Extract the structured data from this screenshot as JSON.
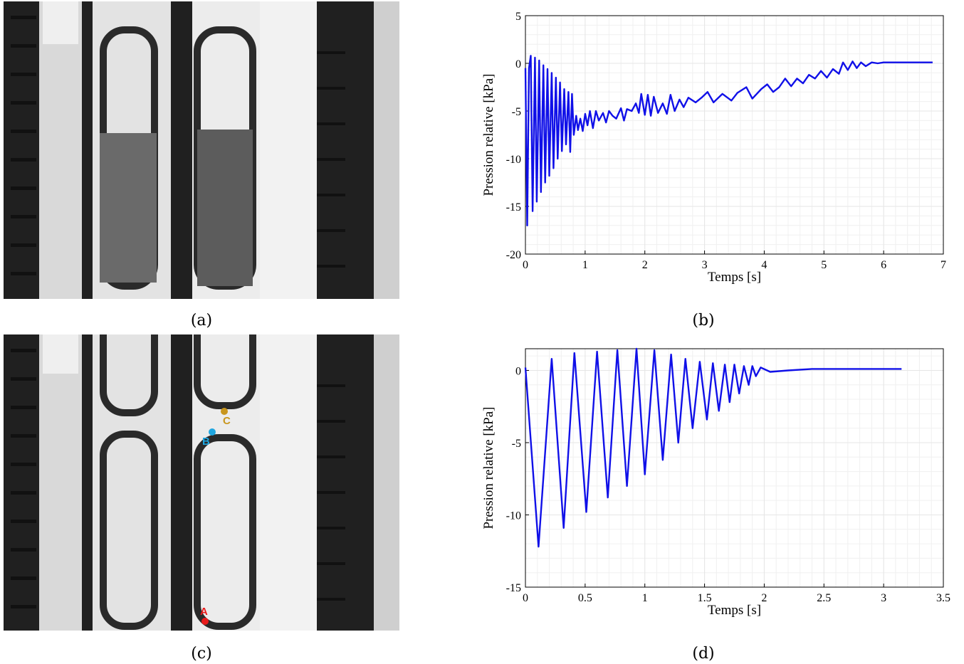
{
  "panels": [
    {
      "id": "a",
      "caption": "(a)"
    },
    {
      "id": "b",
      "caption": "(b)"
    },
    {
      "id": "c",
      "caption": "(c)"
    },
    {
      "id": "d",
      "caption": "(d)"
    }
  ],
  "photo_c_points": [
    {
      "label": "A",
      "color": "#e81b1b"
    },
    {
      "label": "B",
      "color": "#1fa6e0"
    },
    {
      "label": "C",
      "color": "#c8961e"
    }
  ],
  "colors": {
    "series": "#1010e8",
    "grid": "#e6e6e6"
  },
  "chart_data": [
    {
      "type": "line",
      "panel": "b",
      "xlabel": "Temps [s]",
      "ylabel": "Pression relative [kPa]",
      "xlim": [
        0,
        7
      ],
      "ylim": [
        -20,
        5
      ],
      "xticks": [
        0,
        1,
        2,
        3,
        4,
        5,
        6,
        7
      ],
      "yticks": [
        5,
        0,
        -5,
        -10,
        -15,
        -20
      ],
      "grid": true,
      "series": [
        {
          "values": [
            [
              0.0,
              -0.5
            ],
            [
              0.03,
              -17.0
            ],
            [
              0.06,
              -0.5
            ],
            [
              0.09,
              0.8
            ],
            [
              0.12,
              -15.5
            ],
            [
              0.16,
              0.6
            ],
            [
              0.19,
              -14.5
            ],
            [
              0.23,
              0.3
            ],
            [
              0.26,
              -13.5
            ],
            [
              0.3,
              -0.2
            ],
            [
              0.33,
              -12.5
            ],
            [
              0.37,
              -0.6
            ],
            [
              0.4,
              -11.8
            ],
            [
              0.44,
              -1.0
            ],
            [
              0.47,
              -11.0
            ],
            [
              0.51,
              -1.5
            ],
            [
              0.54,
              -10.0
            ],
            [
              0.58,
              -2.0
            ],
            [
              0.61,
              -9.2
            ],
            [
              0.65,
              -2.7
            ],
            [
              0.68,
              -8.5
            ],
            [
              0.72,
              -3.0
            ],
            [
              0.75,
              -9.3
            ],
            [
              0.78,
              -3.2
            ],
            [
              0.81,
              -7.5
            ],
            [
              0.85,
              -5.5
            ],
            [
              0.88,
              -7.0
            ],
            [
              0.92,
              -5.8
            ],
            [
              0.96,
              -7.1
            ],
            [
              1.0,
              -5.3
            ],
            [
              1.04,
              -6.5
            ],
            [
              1.08,
              -5.0
            ],
            [
              1.13,
              -6.8
            ],
            [
              1.18,
              -5.0
            ],
            [
              1.23,
              -6.0
            ],
            [
              1.3,
              -5.2
            ],
            [
              1.35,
              -6.2
            ],
            [
              1.4,
              -5.0
            ],
            [
              1.46,
              -5.5
            ],
            [
              1.52,
              -5.8
            ],
            [
              1.6,
              -4.7
            ],
            [
              1.65,
              -6.0
            ],
            [
              1.7,
              -4.8
            ],
            [
              1.78,
              -5.0
            ],
            [
              1.85,
              -4.2
            ],
            [
              1.9,
              -5.2
            ],
            [
              1.94,
              -3.2
            ],
            [
              2.0,
              -5.4
            ],
            [
              2.05,
              -3.3
            ],
            [
              2.1,
              -5.5
            ],
            [
              2.15,
              -3.5
            ],
            [
              2.22,
              -5.2
            ],
            [
              2.3,
              -4.2
            ],
            [
              2.37,
              -5.3
            ],
            [
              2.43,
              -3.3
            ],
            [
              2.5,
              -5.0
            ],
            [
              2.58,
              -3.8
            ],
            [
              2.65,
              -4.6
            ],
            [
              2.73,
              -3.6
            ],
            [
              2.85,
              -4.1
            ],
            [
              2.95,
              -3.6
            ],
            [
              3.05,
              -3.0
            ],
            [
              3.15,
              -4.1
            ],
            [
              3.3,
              -3.2
            ],
            [
              3.45,
              -3.9
            ],
            [
              3.55,
              -3.1
            ],
            [
              3.7,
              -2.5
            ],
            [
              3.8,
              -3.7
            ],
            [
              3.95,
              -2.7
            ],
            [
              4.05,
              -2.2
            ],
            [
              4.15,
              -3.0
            ],
            [
              4.25,
              -2.5
            ],
            [
              4.35,
              -1.6
            ],
            [
              4.45,
              -2.4
            ],
            [
              4.55,
              -1.6
            ],
            [
              4.65,
              -2.1
            ],
            [
              4.75,
              -1.2
            ],
            [
              4.85,
              -1.6
            ],
            [
              4.95,
              -0.8
            ],
            [
              5.05,
              -1.5
            ],
            [
              5.15,
              -0.6
            ],
            [
              5.25,
              -1.1
            ],
            [
              5.32,
              0.1
            ],
            [
              5.4,
              -0.7
            ],
            [
              5.48,
              0.2
            ],
            [
              5.55,
              -0.5
            ],
            [
              5.62,
              0.1
            ],
            [
              5.7,
              -0.3
            ],
            [
              5.8,
              0.1
            ],
            [
              5.9,
              0.0
            ],
            [
              6.0,
              0.1
            ],
            [
              6.3,
              0.1
            ],
            [
              6.82,
              0.1
            ]
          ]
        }
      ]
    },
    {
      "type": "line",
      "panel": "d",
      "xlabel": "Temps [s]",
      "ylabel": "Pression relative [kPa]",
      "xlim": [
        0,
        3.5
      ],
      "ylim": [
        -15,
        1.5
      ],
      "xticks": [
        0,
        0.5,
        1,
        1.5,
        2,
        2.5,
        3,
        3.5
      ],
      "yticks": [
        0,
        -5,
        -10,
        -15
      ],
      "grid": true,
      "series": [
        {
          "values": [
            [
              0.0,
              0.2
            ],
            [
              0.11,
              -12.2
            ],
            [
              0.22,
              0.8
            ],
            [
              0.32,
              -10.9
            ],
            [
              0.41,
              1.2
            ],
            [
              0.51,
              -9.8
            ],
            [
              0.6,
              1.3
            ],
            [
              0.69,
              -8.8
            ],
            [
              0.77,
              1.4
            ],
            [
              0.85,
              -8.0
            ],
            [
              0.93,
              1.5
            ],
            [
              1.0,
              -7.2
            ],
            [
              1.08,
              1.4
            ],
            [
              1.15,
              -6.2
            ],
            [
              1.22,
              1.1
            ],
            [
              1.28,
              -5.0
            ],
            [
              1.34,
              0.8
            ],
            [
              1.4,
              -4.0
            ],
            [
              1.46,
              0.6
            ],
            [
              1.52,
              -3.4
            ],
            [
              1.57,
              0.5
            ],
            [
              1.62,
              -2.8
            ],
            [
              1.67,
              0.4
            ],
            [
              1.71,
              -2.2
            ],
            [
              1.75,
              0.4
            ],
            [
              1.79,
              -1.6
            ],
            [
              1.83,
              0.3
            ],
            [
              1.87,
              -1.0
            ],
            [
              1.9,
              0.3
            ],
            [
              1.93,
              -0.4
            ],
            [
              1.97,
              0.2
            ],
            [
              2.05,
              -0.1
            ],
            [
              2.2,
              0.0
            ],
            [
              2.4,
              0.1
            ],
            [
              2.6,
              0.1
            ],
            [
              3.15,
              0.1
            ]
          ]
        }
      ]
    }
  ]
}
